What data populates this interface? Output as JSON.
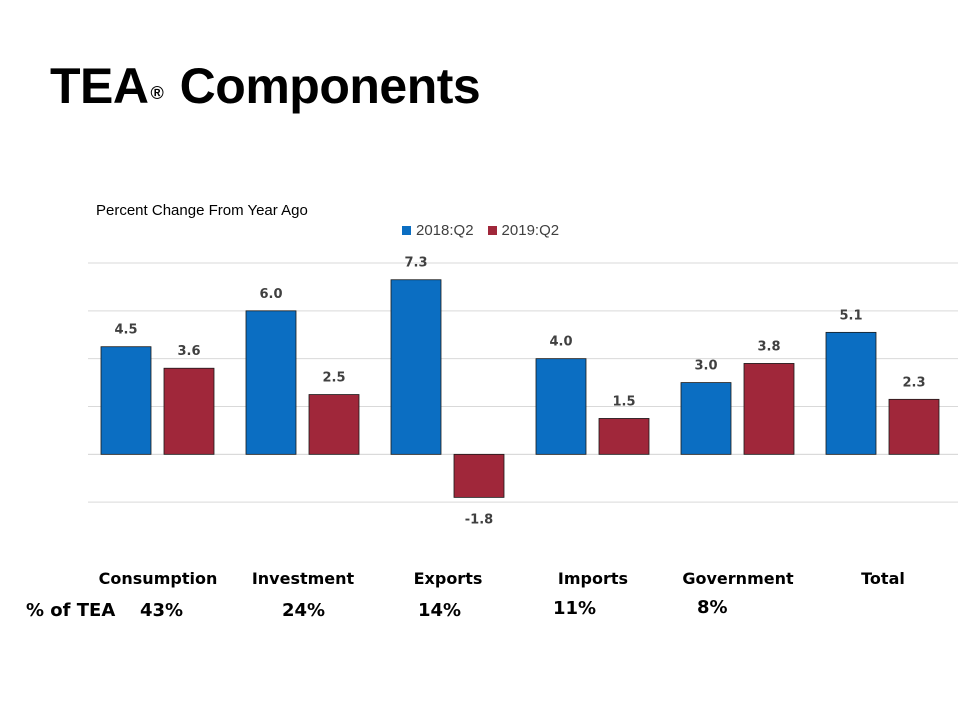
{
  "title": "TEA",
  "title_mark": "®",
  "title_rest": "Components",
  "colors": {
    "series1": "#0B6EC2",
    "series2": "#A0273A",
    "grid": "#D9D9D9",
    "axis_text": "#404040"
  },
  "chart_data": {
    "type": "bar",
    "subtitle": "Percent Change From Year Ago",
    "categories": [
      "Consumption",
      "Investment",
      "Exports",
      "Imports",
      "Government",
      "Total"
    ],
    "series": [
      {
        "name": "2018:Q2",
        "values": [
          4.5,
          6.0,
          7.3,
          4.0,
          3.0,
          5.1
        ]
      },
      {
        "name": "2019:Q2",
        "values": [
          3.6,
          2.5,
          -1.8,
          1.5,
          3.8,
          2.3
        ]
      }
    ],
    "ylim": [
      -4,
      8
    ],
    "grid_step": 2,
    "grid": true,
    "legend_position": "top-center"
  },
  "share": {
    "label": "% of TEA",
    "values": [
      "43%",
      "24%",
      "14%",
      "11%",
      "8%"
    ]
  }
}
